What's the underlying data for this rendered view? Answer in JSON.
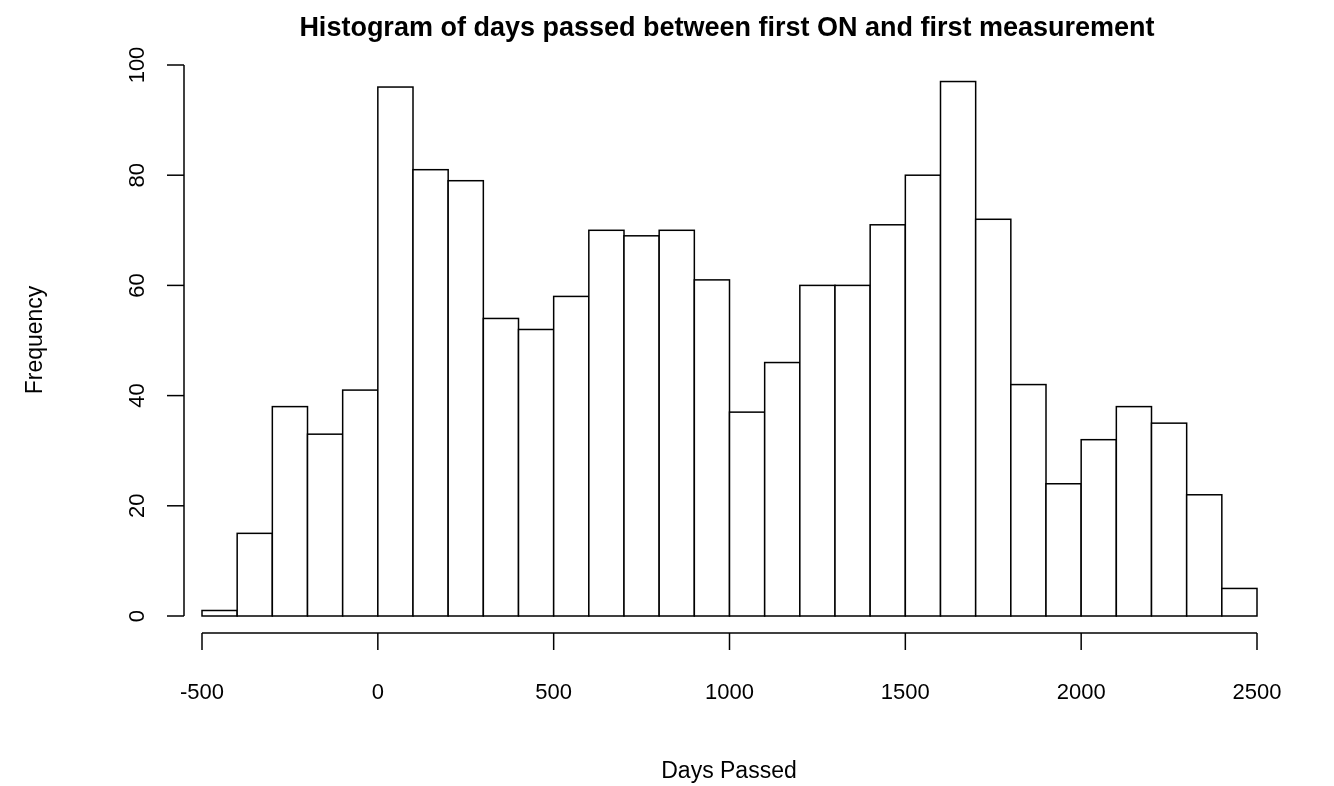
{
  "chart_data": {
    "type": "histogram",
    "title": "Histogram of days passed between first ON and first measurement",
    "xlabel": "Days Passed",
    "ylabel": "Frequency",
    "bins": [
      -500,
      -400,
      -300,
      -200,
      -100,
      0,
      100,
      200,
      300,
      400,
      500,
      600,
      700,
      800,
      900,
      1000,
      1100,
      1200,
      1300,
      1400,
      1500,
      1600,
      1700,
      1800,
      1900,
      2000,
      2100,
      2200,
      2300,
      2400,
      2500
    ],
    "values": [
      1,
      15,
      38,
      33,
      41,
      96,
      81,
      79,
      54,
      52,
      58,
      70,
      69,
      70,
      61,
      37,
      46,
      60,
      60,
      71,
      80,
      97,
      72,
      42,
      24,
      32,
      38,
      35,
      22,
      5
    ],
    "color": "#ffffff",
    "xlim": [
      -500,
      2500
    ],
    "xticks": [
      -500,
      0,
      500,
      1000,
      1500,
      2000,
      2500
    ],
    "ylim": [
      0,
      100
    ],
    "yticks": [
      0,
      20,
      40,
      60,
      80,
      100
    ],
    "grid": false
  }
}
